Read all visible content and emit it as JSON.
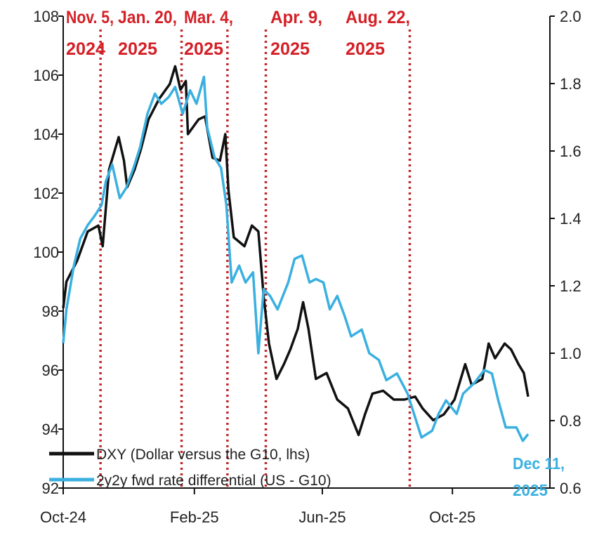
{
  "chart_data": {
    "type": "line",
    "title": "",
    "xlabel": "",
    "ylabel_left": "",
    "ylabel_right": "",
    "x_range": [
      "2024-10-01",
      "2025-12-11"
    ],
    "x_ticks": [
      {
        "date": "2024-10-01",
        "label": "Oct-24"
      },
      {
        "date": "2025-02-01",
        "label": "Feb-25"
      },
      {
        "date": "2025-06-01",
        "label": "Jun-25"
      },
      {
        "date": "2025-10-01",
        "label": "Oct-25"
      }
    ],
    "y_left": {
      "range": [
        92,
        108
      ],
      "ticks": [
        "92",
        "94",
        "96",
        "98",
        "100",
        "102",
        "104",
        "106",
        "108"
      ]
    },
    "y_right": {
      "range": [
        0.6,
        2.0
      ],
      "ticks": [
        "0.6",
        "0.8",
        "1.0",
        "1.2",
        "1.4",
        "1.6",
        "1.8",
        "2.0"
      ]
    },
    "grid": false,
    "legend_placement": "bottom-left",
    "series": [
      {
        "name": "DXY (Dollar versus the G10, lhs)",
        "axis": "left",
        "color": "#111111",
        "points": [
          [
            "2024-10-01",
            98.1
          ],
          [
            "2024-10-04",
            99.0
          ],
          [
            "2024-10-14",
            99.7
          ],
          [
            "2024-10-24",
            100.7
          ],
          [
            "2024-11-03",
            100.9
          ],
          [
            "2024-11-07",
            100.2
          ],
          [
            "2024-11-13",
            102.8
          ],
          [
            "2024-11-22",
            103.9
          ],
          [
            "2024-11-27",
            103.1
          ],
          [
            "2024-11-30",
            102.2
          ],
          [
            "2024-12-07",
            102.8
          ],
          [
            "2024-12-13",
            103.5
          ],
          [
            "2024-12-20",
            104.5
          ],
          [
            "2024-12-30",
            105.2
          ],
          [
            "2025-01-09",
            105.7
          ],
          [
            "2025-01-14",
            106.3
          ],
          [
            "2025-01-19",
            105.5
          ],
          [
            "2025-01-24",
            105.8
          ],
          [
            "2025-01-26",
            104.0
          ],
          [
            "2025-02-05",
            104.5
          ],
          [
            "2025-02-11",
            104.6
          ],
          [
            "2025-02-18",
            103.2
          ],
          [
            "2025-02-25",
            103.1
          ],
          [
            "2025-03-02",
            104.0
          ],
          [
            "2025-03-05",
            102.1
          ],
          [
            "2025-03-10",
            100.5
          ],
          [
            "2025-03-20",
            100.2
          ],
          [
            "2025-03-27",
            100.9
          ],
          [
            "2025-04-02",
            100.7
          ],
          [
            "2025-04-07",
            98.5
          ],
          [
            "2025-04-12",
            96.9
          ],
          [
            "2025-04-19",
            95.7
          ],
          [
            "2025-04-26",
            96.2
          ],
          [
            "2025-05-02",
            96.7
          ],
          [
            "2025-05-09",
            97.4
          ],
          [
            "2025-05-14",
            98.3
          ],
          [
            "2025-05-19",
            97.4
          ],
          [
            "2025-05-26",
            95.7
          ],
          [
            "2025-06-05",
            95.9
          ],
          [
            "2025-06-15",
            95.0
          ],
          [
            "2025-06-25",
            94.7
          ],
          [
            "2025-07-05",
            93.8
          ],
          [
            "2025-07-11",
            94.5
          ],
          [
            "2025-07-18",
            95.2
          ],
          [
            "2025-07-28",
            95.3
          ],
          [
            "2025-08-07",
            95.0
          ],
          [
            "2025-08-17",
            95.0
          ],
          [
            "2025-08-27",
            95.1
          ],
          [
            "2025-09-03",
            94.7
          ],
          [
            "2025-09-13",
            94.3
          ],
          [
            "2025-09-23",
            94.5
          ],
          [
            "2025-10-03",
            95.0
          ],
          [
            "2025-10-13",
            96.2
          ],
          [
            "2025-10-19",
            95.5
          ],
          [
            "2025-10-29",
            95.7
          ],
          [
            "2025-11-04",
            96.9
          ],
          [
            "2025-11-10",
            96.4
          ],
          [
            "2025-11-19",
            96.9
          ],
          [
            "2025-11-25",
            96.7
          ],
          [
            "2025-12-02",
            96.2
          ],
          [
            "2025-12-07",
            95.9
          ],
          [
            "2025-12-11",
            95.1
          ]
        ]
      },
      {
        "name": "2y2y fwd rate differential (US - G10)",
        "axis": "right",
        "color": "#3ab0e0",
        "points": [
          [
            "2024-10-01",
            1.03
          ],
          [
            "2024-10-04",
            1.13
          ],
          [
            "2024-10-11",
            1.26
          ],
          [
            "2024-10-17",
            1.34
          ],
          [
            "2024-10-24",
            1.38
          ],
          [
            "2024-10-31",
            1.41
          ],
          [
            "2024-11-06",
            1.44
          ],
          [
            "2024-11-10",
            1.51
          ],
          [
            "2024-11-16",
            1.56
          ],
          [
            "2024-11-23",
            1.46
          ],
          [
            "2024-11-29",
            1.49
          ],
          [
            "2024-12-06",
            1.55
          ],
          [
            "2024-12-12",
            1.61
          ],
          [
            "2024-12-19",
            1.71
          ],
          [
            "2024-12-26",
            1.77
          ],
          [
            "2025-01-01",
            1.74
          ],
          [
            "2025-01-08",
            1.76
          ],
          [
            "2025-01-14",
            1.79
          ],
          [
            "2025-01-21",
            1.71
          ],
          [
            "2025-01-28",
            1.78
          ],
          [
            "2025-02-03",
            1.74
          ],
          [
            "2025-02-10",
            1.82
          ],
          [
            "2025-02-13",
            1.67
          ],
          [
            "2025-02-20",
            1.58
          ],
          [
            "2025-02-26",
            1.55
          ],
          [
            "2025-03-03",
            1.44
          ],
          [
            "2025-03-08",
            1.21
          ],
          [
            "2025-03-15",
            1.26
          ],
          [
            "2025-03-21",
            1.21
          ],
          [
            "2025-03-28",
            1.24
          ],
          [
            "2025-04-02",
            1.0
          ],
          [
            "2025-04-07",
            1.19
          ],
          [
            "2025-04-13",
            1.17
          ],
          [
            "2025-04-20",
            1.13
          ],
          [
            "2025-04-30",
            1.21
          ],
          [
            "2025-05-06",
            1.28
          ],
          [
            "2025-05-13",
            1.29
          ],
          [
            "2025-05-20",
            1.21
          ],
          [
            "2025-05-26",
            1.22
          ],
          [
            "2025-06-02",
            1.21
          ],
          [
            "2025-06-08",
            1.13
          ],
          [
            "2025-06-15",
            1.17
          ],
          [
            "2025-06-22",
            1.11
          ],
          [
            "2025-06-28",
            1.05
          ],
          [
            "2025-07-08",
            1.07
          ],
          [
            "2025-07-15",
            1.0
          ],
          [
            "2025-07-24",
            0.98
          ],
          [
            "2025-07-31",
            0.92
          ],
          [
            "2025-08-10",
            0.94
          ],
          [
            "2025-08-20",
            0.88
          ],
          [
            "2025-08-26",
            0.82
          ],
          [
            "2025-09-02",
            0.75
          ],
          [
            "2025-09-12",
            0.77
          ],
          [
            "2025-09-18",
            0.82
          ],
          [
            "2025-09-25",
            0.86
          ],
          [
            "2025-10-05",
            0.82
          ],
          [
            "2025-10-11",
            0.88
          ],
          [
            "2025-10-21",
            0.91
          ],
          [
            "2025-10-31",
            0.95
          ],
          [
            "2025-11-07",
            0.94
          ],
          [
            "2025-11-13",
            0.86
          ],
          [
            "2025-11-20",
            0.78
          ],
          [
            "2025-11-30",
            0.78
          ],
          [
            "2025-12-06",
            0.74
          ],
          [
            "2025-12-11",
            0.76
          ]
        ]
      }
    ],
    "events": [
      {
        "date": "2024-11-05",
        "line1": "Nov. 5,",
        "line2": "2024"
      },
      {
        "date": "2025-01-20",
        "line1": "Jan. 20,",
        "line2": "2025"
      },
      {
        "date": "2025-03-04",
        "line1": "Mar. 4,",
        "line2": "2025"
      },
      {
        "date": "2025-04-09",
        "line1": "Apr. 9,",
        "line2": "2025"
      },
      {
        "date": "2025-08-22",
        "line1": "Aug. 22,",
        "line2": "2025"
      }
    ],
    "event_line_color": "#c0282d",
    "annotation": {
      "line1": "Dec 11,",
      "line2": "2025",
      "color": "#3ab0e0"
    }
  }
}
